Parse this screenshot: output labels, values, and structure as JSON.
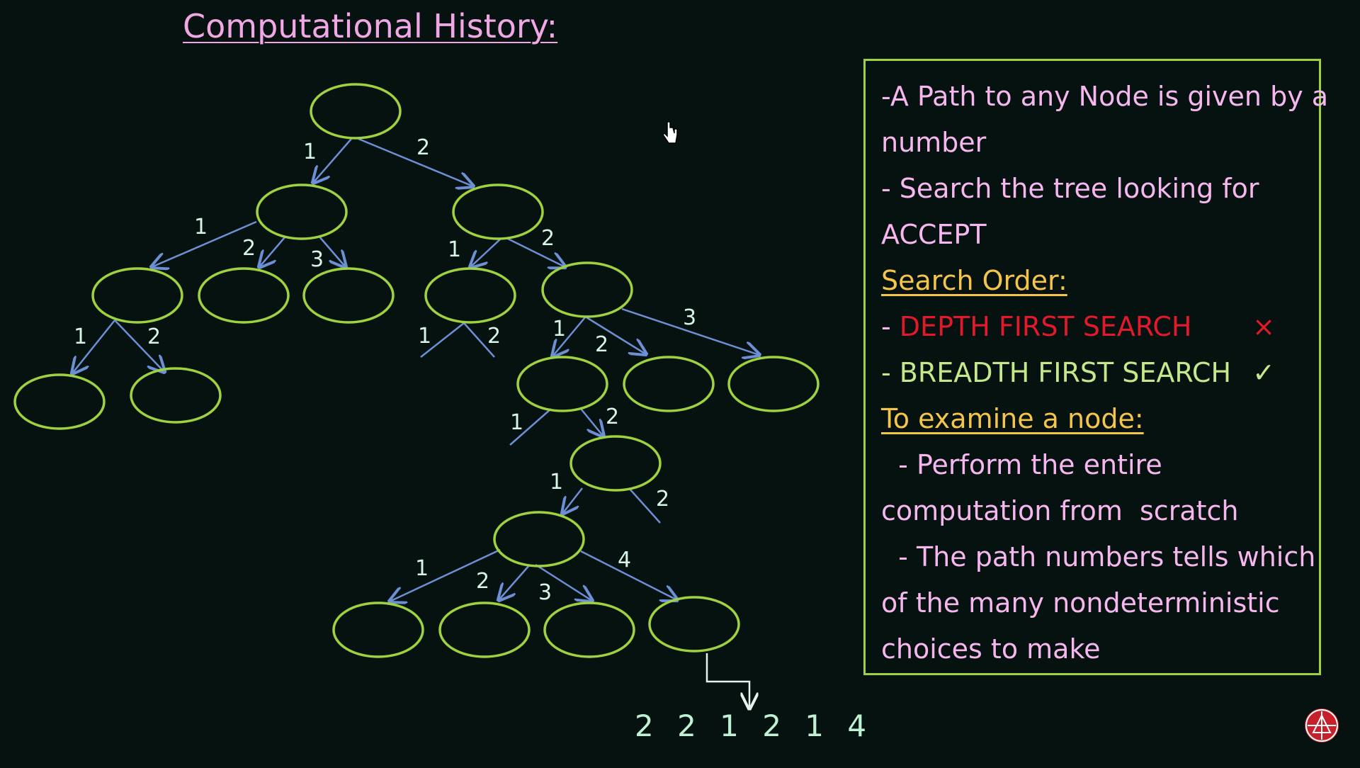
{
  "title": "Computational History:",
  "edge_labels": [
    "1",
    "2",
    "1",
    "2",
    "3",
    "1",
    "2",
    "1",
    "2",
    "1",
    "2",
    "1",
    "2",
    "3",
    "1",
    "2",
    "1",
    "2",
    "1",
    "2",
    "3",
    "4"
  ],
  "notes": {
    "line1": "-A Path to any Node is given by a",
    "line2": "number",
    "line3": "- Search the tree looking for",
    "line4": "ACCEPT",
    "search_order_heading": "Search Order:",
    "dfs_prefix": "- ",
    "dfs": "DEPTH FIRST SEARCH",
    "dfs_mark": "×",
    "bfs": "- BREADTH FIRST SEARCH",
    "bfs_mark": "✓",
    "examine_heading": "To examine a node:",
    "line5": "  - Perform the entire",
    "line6": "computation from  scratch",
    "line7": "  - The path numbers tells which",
    "line8": "of the many nondeterministic",
    "line9": "choices to make"
  },
  "path_number": "2 2 1 2 1 4",
  "colors": {
    "node": "#9fd23f",
    "edge": "#6c8fd6",
    "label": "#d7f5e6",
    "background": "#05120f"
  }
}
